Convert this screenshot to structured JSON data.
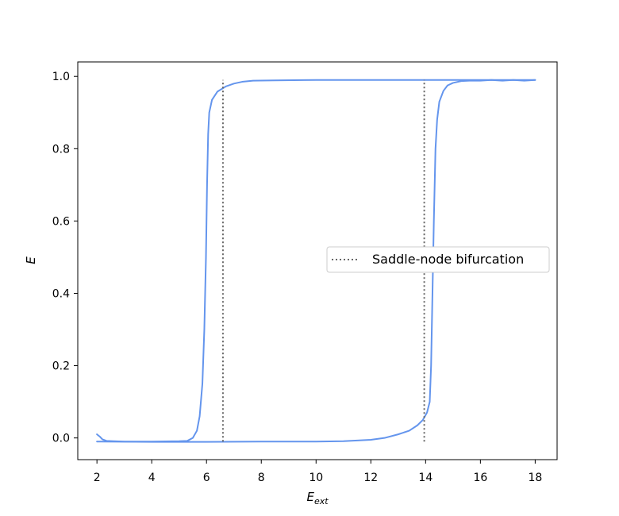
{
  "chart_data": {
    "type": "line",
    "title": "",
    "xlabel_main": "E",
    "xlabel_sub": "ext",
    "ylabel": "E",
    "xlim": [
      1.3,
      18.8
    ],
    "ylim": [
      -0.06,
      1.04
    ],
    "x_ticks": [
      2,
      4,
      6,
      8,
      10,
      12,
      14,
      16,
      18
    ],
    "y_ticks": [
      0.0,
      0.2,
      0.4,
      0.6,
      0.8,
      1.0
    ],
    "y_tick_labels": [
      "0.0",
      "0.2",
      "0.4",
      "0.6",
      "0.8",
      "1.0"
    ],
    "grid": false,
    "legend_position": "center-right",
    "series": [
      {
        "color": "#6495ed",
        "style": "solid",
        "points": [
          [
            2.0,
            0.01
          ],
          [
            2.1,
            0.004
          ],
          [
            2.2,
            -0.004
          ],
          [
            2.35,
            -0.008
          ],
          [
            2.6,
            -0.009
          ],
          [
            3.0,
            -0.01
          ],
          [
            4.0,
            -0.01
          ],
          [
            5.0,
            -0.009
          ],
          [
            5.3,
            -0.008
          ],
          [
            5.5,
            0.0
          ],
          [
            5.65,
            0.02
          ],
          [
            5.75,
            0.06
          ],
          [
            5.85,
            0.15
          ],
          [
            5.92,
            0.3
          ],
          [
            5.98,
            0.5
          ],
          [
            6.02,
            0.7
          ],
          [
            6.06,
            0.84
          ],
          [
            6.1,
            0.9
          ],
          [
            6.2,
            0.935
          ],
          [
            6.4,
            0.958
          ],
          [
            6.7,
            0.972
          ],
          [
            7.0,
            0.98
          ],
          [
            7.3,
            0.985
          ],
          [
            7.7,
            0.988
          ],
          [
            8.5,
            0.989
          ],
          [
            10.0,
            0.99
          ],
          [
            12.0,
            0.99
          ],
          [
            14.0,
            0.99
          ],
          [
            16.0,
            0.99
          ],
          [
            18.0,
            0.99
          ]
        ]
      },
      {
        "color": "#6495ed",
        "style": "solid",
        "points": [
          [
            2.0,
            -0.01
          ],
          [
            4.0,
            -0.011
          ],
          [
            6.0,
            -0.011
          ],
          [
            8.0,
            -0.01
          ],
          [
            10.0,
            -0.01
          ],
          [
            11.0,
            -0.009
          ],
          [
            12.0,
            -0.005
          ],
          [
            12.5,
            0.0
          ],
          [
            13.0,
            0.01
          ],
          [
            13.4,
            0.02
          ],
          [
            13.7,
            0.035
          ],
          [
            13.9,
            0.05
          ],
          [
            14.05,
            0.07
          ],
          [
            14.15,
            0.1
          ],
          [
            14.2,
            0.2
          ],
          [
            14.25,
            0.4
          ],
          [
            14.3,
            0.6
          ],
          [
            14.36,
            0.8
          ],
          [
            14.42,
            0.88
          ],
          [
            14.5,
            0.93
          ],
          [
            14.65,
            0.96
          ],
          [
            14.8,
            0.975
          ],
          [
            15.0,
            0.982
          ],
          [
            15.3,
            0.987
          ],
          [
            15.6,
            0.988
          ],
          [
            16.0,
            0.988
          ],
          [
            16.4,
            0.99
          ],
          [
            16.8,
            0.988
          ],
          [
            17.2,
            0.99
          ],
          [
            17.6,
            0.988
          ],
          [
            18.0,
            0.99
          ]
        ]
      },
      {
        "name": "Saddle-node bifurcation",
        "color": "#666666",
        "style": "dotted",
        "points": [
          [
            6.6,
            -0.01
          ],
          [
            6.6,
            0.99
          ]
        ]
      },
      {
        "color": "#666666",
        "style": "dotted",
        "points": [
          [
            13.95,
            -0.01
          ],
          [
            13.95,
            0.99
          ]
        ]
      }
    ]
  }
}
